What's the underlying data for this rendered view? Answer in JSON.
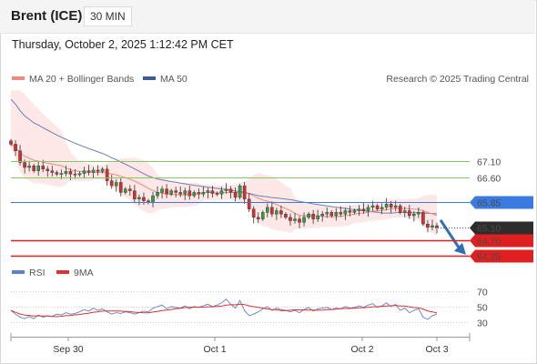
{
  "header": {
    "instrument": "Brent (ICE)",
    "interval": "30 MIN",
    "datetime": "Thursday, October 2, 2025 1:12:42 PM CET"
  },
  "legend": {
    "main": [
      {
        "label": "MA 20 + Bollinger Bands",
        "color": "#f08a80"
      },
      {
        "label": "MA 50",
        "color": "#3d5a99"
      }
    ],
    "credit": "Research © 2025 Trading Central",
    "rsi": [
      {
        "label": "RSI",
        "color": "#5b7fd6"
      },
      {
        "label": "9MA",
        "color": "#e03030"
      }
    ]
  },
  "colors": {
    "up": "#2e9e44",
    "down": "#d23030",
    "resistance": "#8cc46a",
    "pivot": "#3b7ae0",
    "support": "#e02020",
    "arrow": "#2f6fb3",
    "bollinger_fill": "#fde3e3"
  },
  "chart_data": {
    "type": "candlestick",
    "x_ticks": [
      "Sep 30",
      "Oct 1",
      "Oct 2",
      "Oct 3"
    ],
    "levels": [
      {
        "value": "67.10",
        "kind": "resistance"
      },
      {
        "value": "66.60",
        "kind": "resistance"
      },
      {
        "value": "65.85",
        "kind": "pivot"
      },
      {
        "value": "65.10",
        "kind": "last"
      },
      {
        "value": "64.70",
        "kind": "support"
      },
      {
        "value": "64.25",
        "kind": "support"
      }
    ],
    "price_range": [
      64.0,
      69.2
    ],
    "close": [
      67.6,
      67.4,
      67.05,
      66.9,
      66.95,
      66.8,
      66.95,
      66.85,
      66.8,
      66.75,
      66.7,
      66.72,
      66.78,
      66.7,
      66.68,
      66.72,
      66.8,
      66.75,
      66.82,
      66.78,
      66.85,
      66.5,
      66.35,
      66.45,
      66.15,
      66.25,
      66.2,
      65.95,
      66.0,
      65.9,
      65.85,
      66.05,
      66.15,
      66.25,
      66.1,
      66.2,
      66.15,
      66.1,
      66.2,
      66.05,
      66.15,
      66.1,
      66.15,
      66.2,
      66.12,
      66.1,
      66.2,
      66.25,
      66.15,
      66.0,
      66.35,
      65.95,
      65.65,
      65.4,
      65.35,
      65.55,
      65.7,
      65.5,
      65.6,
      65.5,
      65.4,
      65.3,
      65.35,
      65.25,
      65.4,
      65.5,
      65.35,
      65.45,
      65.5,
      65.55,
      65.45,
      65.55,
      65.5,
      65.6,
      65.55,
      65.6,
      65.65,
      65.6,
      65.7,
      65.75,
      65.65,
      65.7,
      65.8,
      65.7,
      65.75,
      65.55,
      65.6,
      65.45,
      65.5,
      65.55,
      65.2,
      65.1,
      65.15,
      65.1
    ],
    "ma_labels_shown": [
      "MA 20 + Bollinger Bands",
      "MA 50"
    ],
    "rsi_ticks": [
      70,
      50,
      30
    ],
    "rsi": [
      45,
      40,
      36,
      34,
      37,
      34,
      39,
      36,
      38,
      37,
      40,
      39,
      42,
      40,
      41,
      43,
      46,
      44,
      48,
      45,
      47,
      43,
      40,
      42,
      41,
      43,
      42,
      40,
      42,
      44,
      43,
      48,
      50,
      52,
      47,
      50,
      49,
      48,
      51,
      47,
      50,
      49,
      51,
      53,
      50,
      52,
      55,
      60,
      53,
      48,
      58,
      45,
      38,
      40,
      43,
      47,
      50,
      45,
      48,
      46,
      45,
      43,
      45,
      42,
      46,
      49,
      44,
      47,
      48,
      49,
      46,
      48,
      47,
      50,
      48,
      49,
      51,
      49,
      52,
      54,
      49,
      51,
      55,
      50,
      53,
      45,
      48,
      42,
      45,
      47,
      36,
      33,
      38,
      40
    ]
  }
}
